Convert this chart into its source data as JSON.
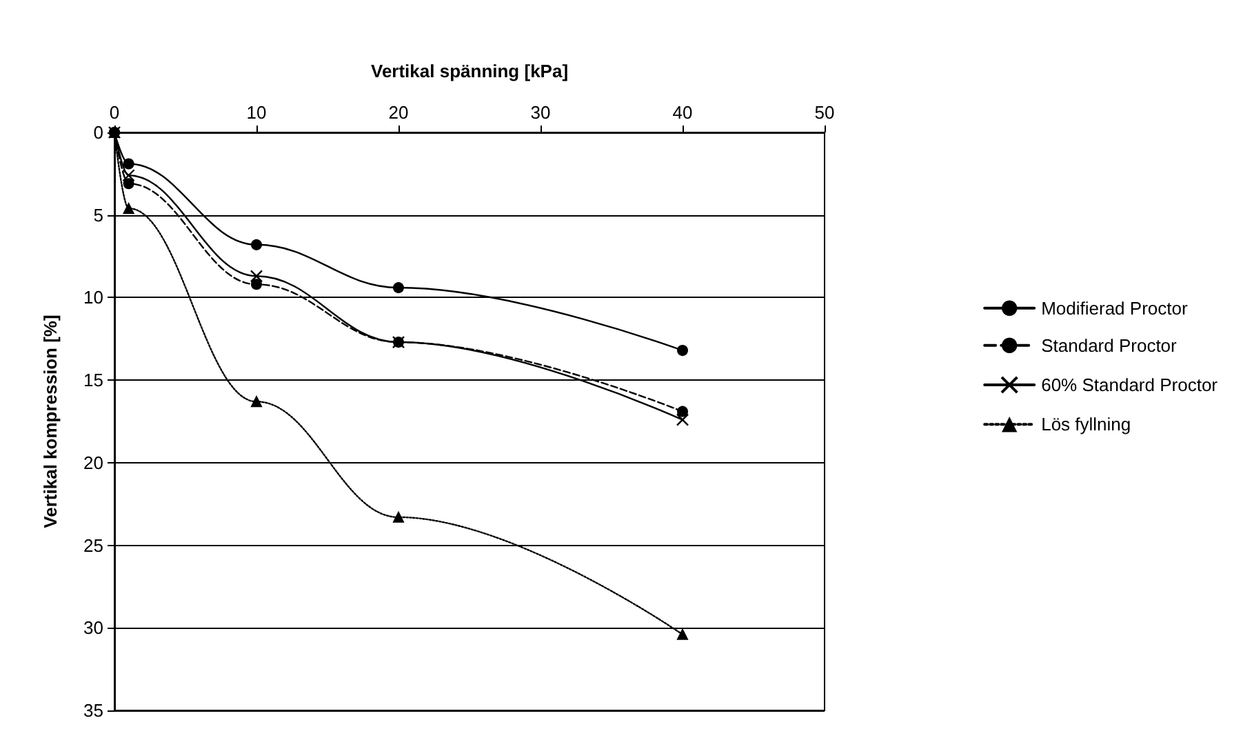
{
  "chart_data": {
    "type": "line",
    "xlabel": "Vertikal spänning [kPa]",
    "ylabel": "Vertikal kompression [%]",
    "xlim": [
      0,
      50
    ],
    "xticks": [
      0,
      10,
      20,
      30,
      40,
      50
    ],
    "ylim": [
      35,
      0
    ],
    "yticks": [
      0,
      5,
      10,
      15,
      20,
      25,
      30,
      35
    ],
    "grid": "y",
    "legend": "right",
    "series": [
      {
        "name": "Modifierad Proctor",
        "color": "#000000",
        "marker": "circle",
        "line_style": "solid",
        "x": [
          0,
          1,
          10,
          20,
          40
        ],
        "values": [
          0,
          1.9,
          6.8,
          9.4,
          13.2
        ]
      },
      {
        "name": "Standard Proctor",
        "color": "#000000",
        "marker": "circle",
        "line_style": "dashed",
        "x": [
          0,
          1,
          10,
          20,
          40
        ],
        "values": [
          0,
          3.1,
          9.2,
          12.7,
          16.9
        ]
      },
      {
        "name": "60% Standard Proctor",
        "color": "#000000",
        "marker": "cross",
        "line_style": "solid",
        "x": [
          0,
          1,
          10,
          20,
          40
        ],
        "values": [
          0,
          2.6,
          8.7,
          12.7,
          17.4
        ]
      },
      {
        "name": "Lös fyllning",
        "color": "#000000",
        "marker": "triangle",
        "line_style": "dotted",
        "x": [
          0,
          1,
          10,
          20,
          40
        ],
        "values": [
          0,
          4.6,
          16.3,
          23.3,
          30.4
        ]
      }
    ]
  }
}
